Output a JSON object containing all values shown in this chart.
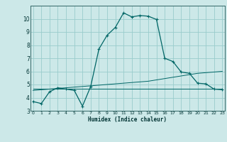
{
  "xlabel": "Humidex (Indice chaleur)",
  "x_ticks": [
    0,
    1,
    2,
    3,
    4,
    5,
    6,
    7,
    8,
    9,
    10,
    11,
    12,
    13,
    14,
    15,
    16,
    17,
    18,
    19,
    20,
    21,
    22,
    23
  ],
  "x_labels": [
    "0",
    "1",
    "2",
    "3",
    "4",
    "5",
    "6",
    "7",
    "8",
    "9",
    "10",
    "11",
    "12",
    "13",
    "14",
    "15",
    "16",
    "17",
    "18",
    "19",
    "20",
    "21",
    "22",
    "23"
  ],
  "xlim": [
    -0.3,
    23.3
  ],
  "ylim": [
    3.0,
    11.0
  ],
  "y_ticks": [
    3,
    4,
    5,
    6,
    7,
    8,
    9,
    10
  ],
  "y_labels": [
    "3",
    "4",
    "5",
    "6",
    "7",
    "8",
    "9",
    "10"
  ],
  "bg_color": "#cce8e8",
  "grid_color": "#99cccc",
  "line_color": "#006666",
  "line1_x": [
    0,
    1,
    2,
    3,
    4,
    5,
    6,
    7,
    8,
    9,
    10,
    11,
    12,
    13,
    14,
    15,
    16,
    17,
    18,
    19,
    20,
    21,
    22,
    23
  ],
  "line1_y": [
    3.7,
    3.55,
    4.45,
    4.75,
    4.65,
    4.55,
    3.35,
    4.85,
    7.7,
    8.75,
    9.35,
    10.45,
    10.15,
    10.25,
    10.2,
    9.95,
    7.0,
    6.75,
    5.95,
    5.85,
    5.1,
    5.05,
    4.65,
    4.6
  ],
  "line2_x": [
    0,
    1,
    2,
    3,
    4,
    5,
    6,
    7,
    8,
    9,
    10,
    11,
    12,
    13,
    14,
    15,
    16,
    17,
    18,
    19,
    20,
    21,
    22,
    23
  ],
  "line2_y": [
    4.65,
    4.65,
    4.65,
    4.65,
    4.65,
    4.65,
    4.65,
    4.65,
    4.65,
    4.65,
    4.65,
    4.65,
    4.65,
    4.65,
    4.65,
    4.65,
    4.65,
    4.65,
    4.65,
    4.65,
    4.65,
    4.65,
    4.65,
    4.65
  ],
  "line3_x": [
    0,
    1,
    2,
    3,
    4,
    5,
    6,
    7,
    8,
    9,
    10,
    11,
    12,
    13,
    14,
    15,
    16,
    17,
    18,
    19,
    20,
    21,
    22,
    23
  ],
  "line3_y": [
    4.55,
    4.6,
    4.65,
    4.7,
    4.75,
    4.8,
    4.85,
    4.9,
    4.95,
    5.0,
    5.05,
    5.1,
    5.15,
    5.2,
    5.25,
    5.35,
    5.45,
    5.55,
    5.65,
    5.75,
    5.85,
    5.9,
    5.95,
    6.0
  ]
}
